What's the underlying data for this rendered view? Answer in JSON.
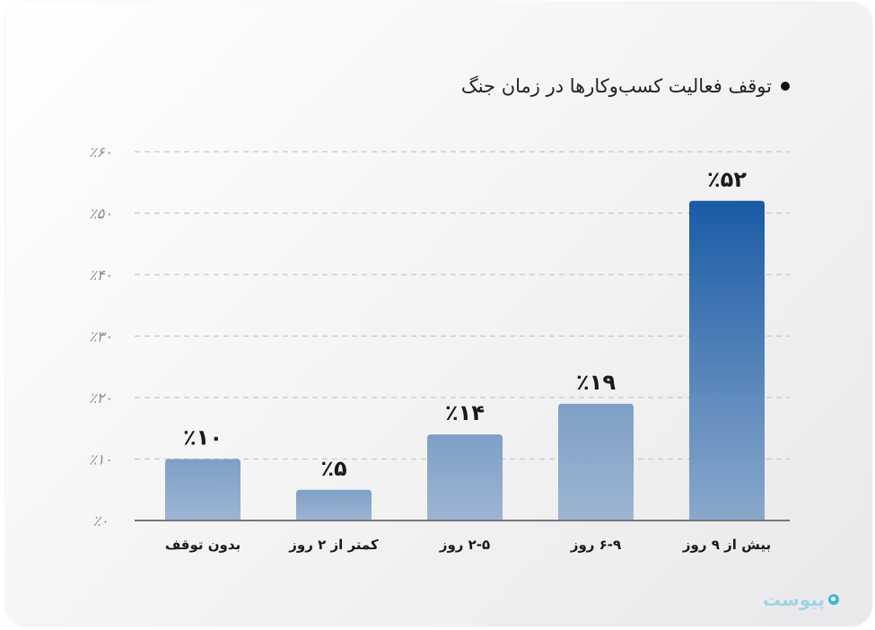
{
  "chart_data": {
    "type": "bar",
    "title": "توقف فعالیت کسب‌وکارها در زمان جنگ",
    "categories": [
      "بدون توقف",
      "کمتر از ۲ روز",
      "۲-۵ روز",
      "۶-۹ روز",
      "بیش از ۹ روز"
    ],
    "values": [
      10,
      5,
      14,
      19,
      52
    ],
    "value_labels": [
      "٪۱۰",
      "٪۵",
      "٪۱۴",
      "٪۱۹",
      "٪۵۲"
    ],
    "yticks": [
      0,
      10,
      20,
      30,
      40,
      50,
      60
    ],
    "ytick_labels": [
      "٪۰",
      "٪۱۰",
      "٪۲۰",
      "٪۳۰",
      "٪۴۰",
      "٪۵۰",
      "٪۶۰"
    ],
    "ylim": [
      0,
      60
    ],
    "xlabel": "",
    "ylabel": "",
    "grid": "horizontal-dashed",
    "colors": {
      "bar_top_light": "#7e9fc6",
      "bar_bottom_light": "#9db5d3",
      "bar_top_dark": "#1a5ba6",
      "bar_bottom_dark": "#8aa9cc",
      "grid": "#c8c8c8",
      "axis": "#777777",
      "tick_label": "#8a8a8a",
      "value_label": "#1a1a1a"
    }
  },
  "brand": {
    "logo_text": "پیوست",
    "logo_color": "#3fb7cf"
  }
}
